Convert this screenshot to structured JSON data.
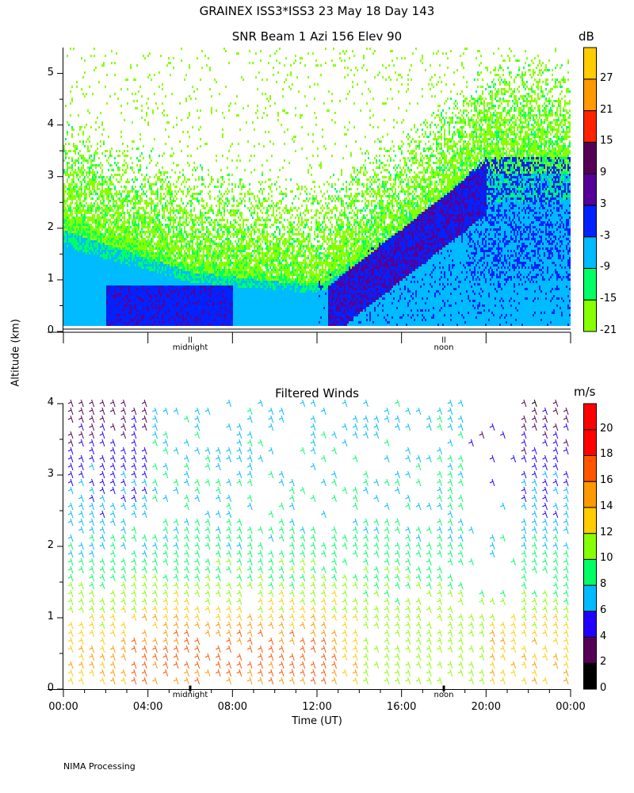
{
  "title": "GRAINEX ISS3*ISS3  23 May 18 Day 143",
  "footer": "NIMA Processing",
  "ylabel": "Altitude (km)",
  "chart_data": [
    {
      "type": "heatmap",
      "title": "SNR Beam 1 Azi 156 Elev 90",
      "ylabel": "Altitude (km)",
      "ylim": [
        0,
        5.5
      ],
      "yticks": [
        "0",
        "1",
        "2",
        "3",
        "4",
        "5"
      ],
      "xlim_hours": [
        0,
        24
      ],
      "x_markers": [
        "midnight",
        "noon"
      ],
      "colorbar": {
        "unit": "dB",
        "labels": [
          "-21",
          "-15",
          "-9",
          "-3",
          "3",
          "9",
          "15",
          "21",
          "27"
        ],
        "colors": [
          "#88ff00",
          "#00ff66",
          "#00bbff",
          "#0022ff",
          "#550099",
          "#550055",
          "#ff2200",
          "#ff9900",
          "#ffcc00"
        ]
      }
    },
    {
      "type": "barbs",
      "title": "Filtered Winds",
      "xlabel": "Time (UT)",
      "ylim": [
        0,
        4
      ],
      "yticks": [
        "0",
        "1",
        "2",
        "3",
        "4"
      ],
      "xticks": [
        "00:00",
        "04:00",
        "08:00",
        "12:00",
        "16:00",
        "20:00",
        "00:00"
      ],
      "x_markers": [
        "midnight",
        "noon"
      ],
      "colorbar": {
        "unit": "m/s",
        "labels": [
          "0",
          "2",
          "4",
          "6",
          "8",
          "10",
          "12",
          "14",
          "16",
          "18",
          "20"
        ],
        "colors": [
          "#000000",
          "#550055",
          "#2200ff",
          "#00bbff",
          "#00ff66",
          "#88ff00",
          "#ffcc00",
          "#ff9900",
          "#ff5500",
          "#ff0000",
          "#ff0000"
        ]
      }
    }
  ]
}
